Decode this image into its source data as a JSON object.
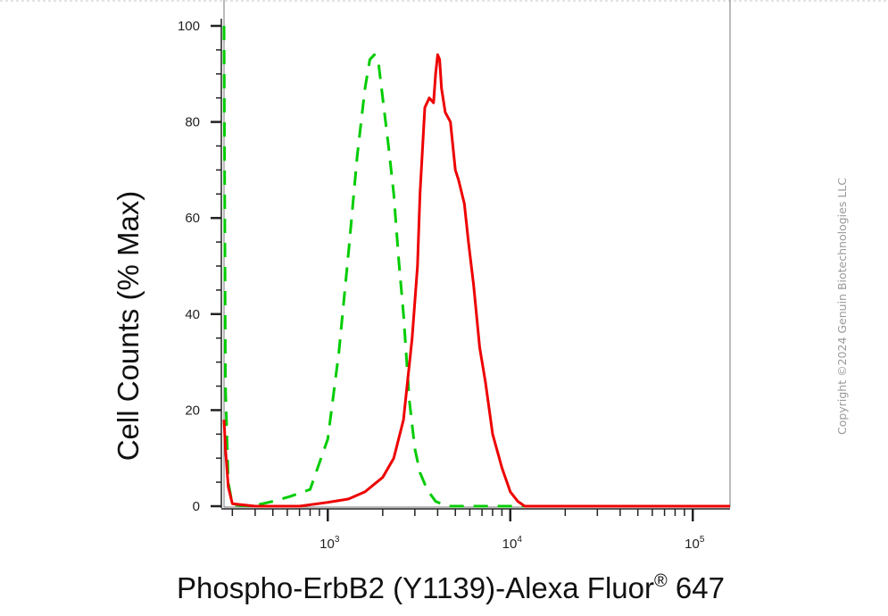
{
  "chart_data": {
    "type": "line",
    "xlabel": "Phospho-ErbB2 (Y1139)-Alexa Fluor",
    "xlabel_superscript": "®",
    "xlabel_suffix": " 647",
    "ylabel": "Cell Counts (% Max)",
    "x_scale": "log",
    "xlim": [
      270,
      160000
    ],
    "ylim": [
      0,
      100
    ],
    "y_ticks": [
      "0",
      "20",
      "40",
      "60",
      "80",
      "100"
    ],
    "x_ticks": [
      {
        "value": 1000,
        "base": "10",
        "exp": "3"
      },
      {
        "value": 10000,
        "base": "10",
        "exp": "4"
      },
      {
        "value": 100000,
        "base": "10",
        "exp": "5"
      }
    ],
    "grid": false,
    "legend": "none",
    "series": [
      {
        "color": "#00cc00",
        "style": "dashed",
        "x": [
          270,
          275,
          285,
          300,
          380,
          500,
          620,
          800,
          1000,
          1150,
          1300,
          1450,
          1600,
          1700,
          1800,
          1900,
          2000,
          2150,
          2300,
          2450,
          2600,
          2800,
          3000,
          3200,
          3500,
          3900,
          4500,
          10000,
          160000
        ],
        "y": [
          100,
          25,
          5,
          0.3,
          0,
          1,
          2,
          3.5,
          14,
          32,
          53,
          73,
          87,
          93,
          94,
          92,
          85,
          75,
          65,
          51,
          40,
          22,
          12,
          7,
          3.5,
          1,
          0,
          0,
          0
        ]
      },
      {
        "color": "#ee0000",
        "style": "solid",
        "x": [
          270,
          275,
          285,
          300,
          400,
          700,
          1000,
          1300,
          1600,
          2000,
          2300,
          2600,
          2900,
          3100,
          3200,
          3400,
          3600,
          3800,
          3900,
          4000,
          4100,
          4200,
          4400,
          4700,
          5000,
          5200,
          5600,
          5900,
          6300,
          6800,
          7300,
          8000,
          9000,
          10000,
          11000,
          12000,
          160000
        ],
        "y": [
          18,
          12,
          4,
          0.5,
          0,
          0,
          0.8,
          1.5,
          3,
          6,
          10,
          18,
          35,
          50,
          65,
          83,
          85,
          84,
          90,
          94,
          93,
          87,
          82,
          80,
          70,
          68,
          63,
          55,
          46,
          33,
          26,
          15,
          8,
          3,
          1,
          0,
          0
        ]
      }
    ]
  },
  "copyright": "Copyright ©2024 Genuin Biotechnologies LLC"
}
